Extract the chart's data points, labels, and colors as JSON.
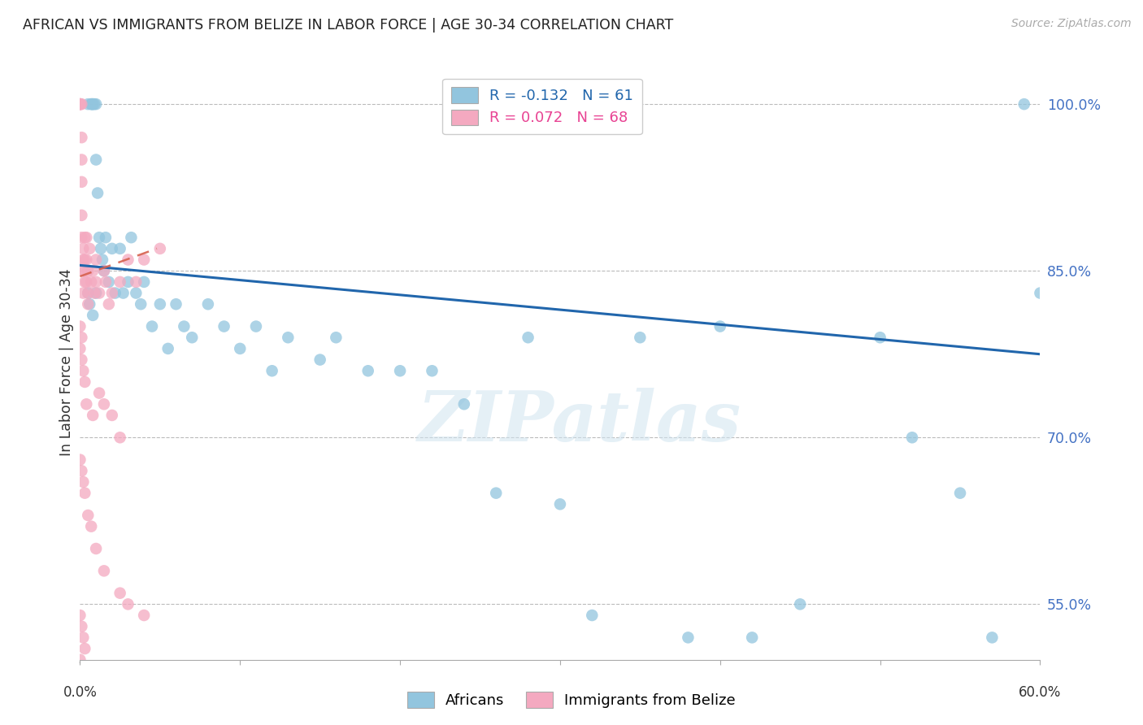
{
  "title": "AFRICAN VS IMMIGRANTS FROM BELIZE IN LABOR FORCE | AGE 30-34 CORRELATION CHART",
  "source": "Source: ZipAtlas.com",
  "ylabel": "In Labor Force | Age 30-34",
  "ytick_labels": [
    "100.0%",
    "85.0%",
    "70.0%",
    "55.0%"
  ],
  "ytick_values": [
    1.0,
    0.85,
    0.7,
    0.55
  ],
  "xlim": [
    0.0,
    0.6
  ],
  "ylim": [
    0.5,
    1.035
  ],
  "watermark": "ZIPatlas",
  "legend_r_blue": "-0.132",
  "legend_n_blue": "61",
  "legend_r_pink": "0.072",
  "legend_n_pink": "68",
  "blue_color": "#92c5de",
  "pink_color": "#f4a9c0",
  "blue_line_color": "#2166ac",
  "pink_line_color": "#d6604d",
  "africans_x": [
    0.005,
    0.007,
    0.007,
    0.008,
    0.008,
    0.009,
    0.01,
    0.01,
    0.011,
    0.012,
    0.013,
    0.014,
    0.015,
    0.016,
    0.018,
    0.02,
    0.022,
    0.025,
    0.027,
    0.03,
    0.032,
    0.035,
    0.038,
    0.04,
    0.045,
    0.05,
    0.055,
    0.06,
    0.065,
    0.07,
    0.08,
    0.09,
    0.1,
    0.11,
    0.12,
    0.13,
    0.15,
    0.16,
    0.18,
    0.2,
    0.22,
    0.24,
    0.26,
    0.28,
    0.3,
    0.32,
    0.35,
    0.38,
    0.4,
    0.42,
    0.45,
    0.5,
    0.52,
    0.55,
    0.57,
    0.59,
    0.6,
    0.005,
    0.006,
    0.008,
    0.01
  ],
  "africans_y": [
    1.0,
    1.0,
    1.0,
    1.0,
    1.0,
    1.0,
    1.0,
    0.95,
    0.92,
    0.88,
    0.87,
    0.86,
    0.85,
    0.88,
    0.84,
    0.87,
    0.83,
    0.87,
    0.83,
    0.84,
    0.88,
    0.83,
    0.82,
    0.84,
    0.8,
    0.82,
    0.78,
    0.82,
    0.8,
    0.79,
    0.82,
    0.8,
    0.78,
    0.8,
    0.76,
    0.79,
    0.77,
    0.79,
    0.76,
    0.76,
    0.76,
    0.73,
    0.65,
    0.79,
    0.64,
    0.54,
    0.79,
    0.52,
    0.8,
    0.52,
    0.55,
    0.79,
    0.7,
    0.65,
    0.52,
    1.0,
    0.83,
    0.83,
    0.82,
    0.81,
    0.83
  ],
  "belize_x": [
    0.0,
    0.0,
    0.0,
    0.0,
    0.001,
    0.001,
    0.001,
    0.001,
    0.001,
    0.001,
    0.002,
    0.002,
    0.002,
    0.002,
    0.003,
    0.003,
    0.003,
    0.003,
    0.004,
    0.004,
    0.004,
    0.005,
    0.005,
    0.005,
    0.006,
    0.007,
    0.008,
    0.009,
    0.01,
    0.01,
    0.012,
    0.015,
    0.016,
    0.018,
    0.02,
    0.025,
    0.03,
    0.035,
    0.04,
    0.05,
    0.0,
    0.0,
    0.001,
    0.001,
    0.002,
    0.003,
    0.004,
    0.008,
    0.012,
    0.015,
    0.02,
    0.025,
    0.0,
    0.001,
    0.002,
    0.003,
    0.005,
    0.007,
    0.01,
    0.015,
    0.025,
    0.03,
    0.04,
    0.0,
    0.001,
    0.002,
    0.003,
    0.0
  ],
  "belize_y": [
    1.0,
    1.0,
    1.0,
    1.0,
    1.0,
    0.97,
    0.95,
    0.93,
    0.9,
    0.88,
    0.87,
    0.86,
    0.85,
    0.83,
    0.88,
    0.86,
    0.85,
    0.84,
    0.88,
    0.86,
    0.84,
    0.85,
    0.83,
    0.82,
    0.87,
    0.84,
    0.85,
    0.83,
    0.86,
    0.84,
    0.83,
    0.85,
    0.84,
    0.82,
    0.83,
    0.84,
    0.86,
    0.84,
    0.86,
    0.87,
    0.8,
    0.78,
    0.79,
    0.77,
    0.76,
    0.75,
    0.73,
    0.72,
    0.74,
    0.73,
    0.72,
    0.7,
    0.68,
    0.67,
    0.66,
    0.65,
    0.63,
    0.62,
    0.6,
    0.58,
    0.56,
    0.55,
    0.54,
    0.54,
    0.53,
    0.52,
    0.51,
    0.5
  ],
  "blue_line_x": [
    0.0,
    0.6
  ],
  "blue_line_y": [
    0.855,
    0.775
  ],
  "pink_line_x": [
    0.0,
    0.048
  ],
  "pink_line_y": [
    0.845,
    0.87
  ]
}
